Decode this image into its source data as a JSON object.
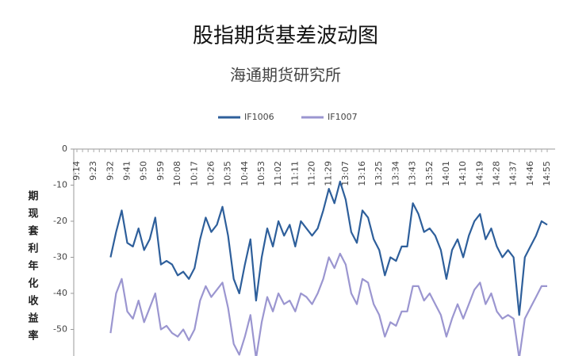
{
  "chart_data": {
    "type": "line",
    "title": "股指期货基差波动图",
    "subtitle": "海通期货研究所",
    "y_label": "期现套利年化收益率",
    "categories": [
      "9:14",
      null,
      null,
      "9:23",
      null,
      null,
      "9:32",
      null,
      null,
      "9:41",
      null,
      null,
      "9:50",
      null,
      null,
      "9:59",
      null,
      null,
      "10:08",
      null,
      null,
      "10:17",
      null,
      null,
      "10:26",
      null,
      null,
      "10:35",
      null,
      null,
      "10:44",
      null,
      null,
      "10:53",
      null,
      null,
      "11:02",
      null,
      null,
      "11:11",
      null,
      null,
      "11:20",
      null,
      null,
      "11:29",
      null,
      null,
      "13:07",
      null,
      null,
      "13:16",
      null,
      null,
      "13:25",
      null,
      null,
      "13:34",
      null,
      null,
      "13:43",
      null,
      null,
      "13:52",
      null,
      null,
      "14:01",
      null,
      null,
      "14:10",
      null,
      null,
      "14:19",
      null,
      null,
      "14:28",
      null,
      null,
      "14:37",
      null,
      null,
      "14:46",
      null,
      null,
      "14:55"
    ],
    "series": [
      {
        "name": "IF1006",
        "color": "#2e5f9b",
        "values": [
          null,
          null,
          null,
          null,
          null,
          null,
          -30,
          -23,
          -17,
          -26,
          -27,
          -22,
          -28,
          -25,
          -19,
          -32,
          -31,
          -32,
          -35,
          -34,
          -36,
          -33,
          -25,
          -19,
          -23,
          -21,
          -16,
          -24,
          -36,
          -40,
          -32,
          -25,
          -42,
          -30,
          -22,
          -27,
          -20,
          -24,
          -21,
          -27,
          -20,
          -22,
          -24,
          -22,
          -17,
          -11,
          -15,
          -9,
          -14,
          -23,
          -26,
          -17,
          -19,
          -25,
          -28,
          -35,
          -30,
          -31,
          -27,
          -27,
          -15,
          -18,
          -23,
          -22,
          -24,
          -28,
          -36,
          -28,
          -25,
          -30,
          -24,
          -20,
          -18,
          -25,
          -22,
          -27,
          -30,
          -28,
          -30,
          -46,
          -30,
          -27,
          -24,
          -20,
          -21
        ]
      },
      {
        "name": "IF1007",
        "color": "#9b96d0",
        "values": [
          null,
          null,
          null,
          null,
          null,
          null,
          -51,
          -40,
          -36,
          -45,
          -47,
          -42,
          -48,
          -44,
          -40,
          -50,
          -49,
          -51,
          -52,
          -50,
          -53,
          -50,
          -42,
          -38,
          -41,
          -39,
          -37,
          -44,
          -54,
          -57,
          -52,
          -46,
          -58,
          -48,
          -41,
          -45,
          -40,
          -43,
          -42,
          -45,
          -40,
          -41,
          -43,
          -40,
          -36,
          -30,
          -33,
          -29,
          -32,
          -40,
          -43,
          -36,
          -37,
          -43,
          -46,
          -52,
          -48,
          -49,
          -45,
          -45,
          -38,
          -38,
          -42,
          -40,
          -43,
          -46,
          -52,
          -47,
          -43,
          -47,
          -43,
          -39,
          -37,
          -43,
          -40,
          -45,
          -47,
          -46,
          -47,
          -58,
          -47,
          -44,
          -41,
          -38,
          -38
        ]
      }
    ],
    "ylim": [
      -60,
      0
    ],
    "yticks": [
      0,
      -10,
      -20,
      -30,
      -40,
      -50
    ],
    "grid": false,
    "legend": "top"
  }
}
